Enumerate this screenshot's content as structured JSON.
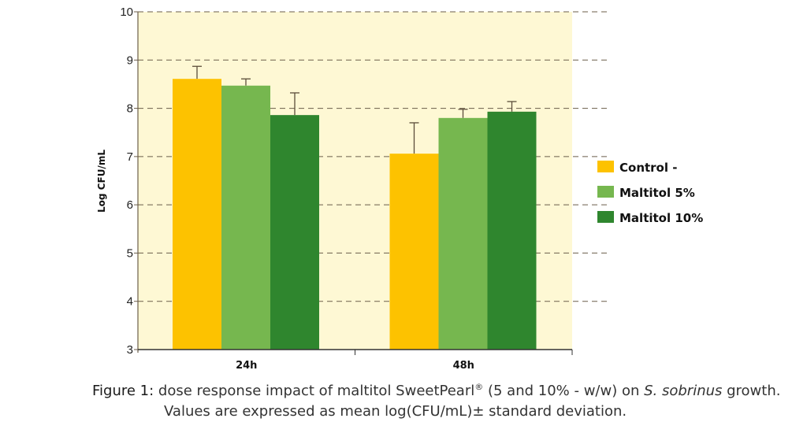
{
  "chart_data": {
    "type": "bar",
    "title": "",
    "xlabel": "",
    "ylabel": "Log CFU/mL",
    "ylim": [
      3,
      10
    ],
    "yticks": [
      3,
      4,
      5,
      6,
      7,
      8,
      9,
      10
    ],
    "grid": "horizontal dashed",
    "legend": "right",
    "background": "#fef8d4",
    "categories": [
      "24h",
      "48h"
    ],
    "series": [
      {
        "name": "Control -",
        "color": "#fdc200",
        "values": [
          8.61,
          7.06
        ],
        "error": [
          0.26,
          0.64
        ]
      },
      {
        "name": "Maltitol 5%",
        "color": "#76b74f",
        "values": [
          8.47,
          7.8
        ],
        "error": [
          0.14,
          0.18
        ]
      },
      {
        "name": "Maltitol 10%",
        "color": "#2f862e",
        "values": [
          7.86,
          7.93
        ],
        "error": [
          0.46,
          0.21
        ]
      }
    ]
  },
  "caption": {
    "label": "Figure 1:",
    "line1_a": " dose response impact of maltitol SweetPearl",
    "reg": "®",
    "line1_b": " (5 and 10% - w/w) on ",
    "species": "S. sobrinus",
    "line1_c": " growth.",
    "line2": "Values are expressed as mean log(CFU/mL)± standard deviation."
  }
}
